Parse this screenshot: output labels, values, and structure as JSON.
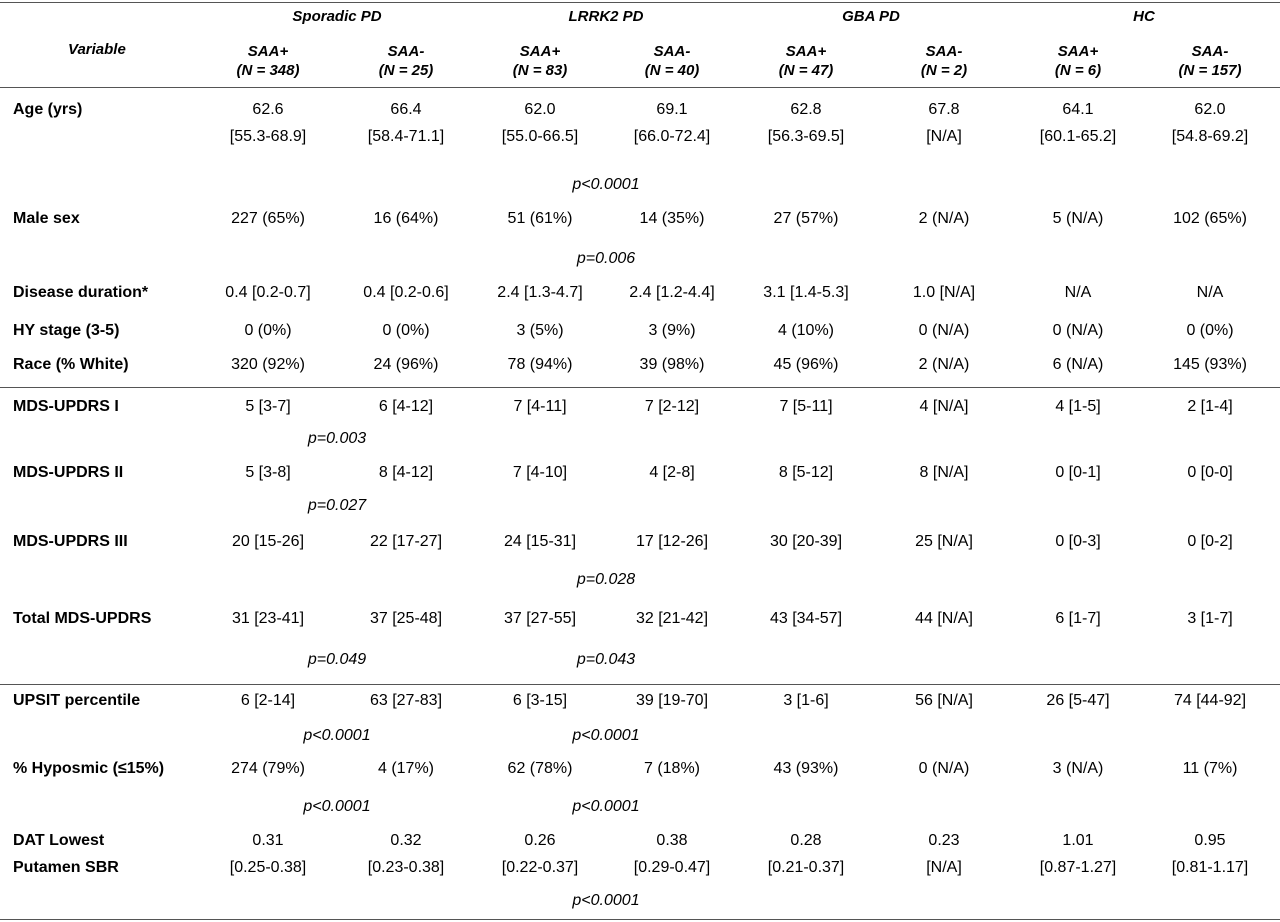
{
  "table": {
    "variable_header": "Variable",
    "groups": [
      "Sporadic PD",
      "LRRK2 PD",
      "GBA PD",
      "HC"
    ],
    "subheaders": [
      {
        "name": "SAA+",
        "n": "(N = 348)"
      },
      {
        "name": "SAA-",
        "n": "(N = 25)"
      },
      {
        "name": "SAA+",
        "n": "(N = 83)"
      },
      {
        "name": "SAA-",
        "n": "(N = 40)"
      },
      {
        "name": "SAA+",
        "n": "(N = 47)"
      },
      {
        "name": "SAA-",
        "n": "(N = 2)"
      },
      {
        "name": "SAA+",
        "n": "(N = 6)"
      },
      {
        "name": "SAA-",
        "n": "(N = 157)"
      }
    ],
    "rows": [
      {
        "label": "Age (yrs)",
        "values": [
          "62.6",
          "66.4",
          "62.0",
          "69.1",
          "62.8",
          "67.8",
          "64.1",
          "62.0"
        ],
        "ranges": [
          "[55.3-68.9]",
          "[58.4-71.1]",
          "[55.0-66.5]",
          "[66.0-72.4]",
          "[56.3-69.5]",
          "[N/A]",
          "[60.1-65.2]",
          "[54.8-69.2]"
        ],
        "pvalues": [
          "",
          "p<0.0001"
        ]
      },
      {
        "label": "Male sex",
        "values": [
          "227 (65%)",
          "16 (64%)",
          "51 (61%)",
          "14 (35%)",
          "27 (57%)",
          "2 (N/A)",
          "5 (N/A)",
          "102 (65%)"
        ],
        "pvalues": [
          "",
          "p=0.006"
        ]
      },
      {
        "label": "Disease duration*",
        "values": [
          "0.4 [0.2-0.7]",
          "0.4 [0.2-0.6]",
          "2.4 [1.3-4.7]",
          "2.4 [1.2-4.4]",
          "3.1 [1.4-5.3]",
          "1.0 [N/A]",
          "N/A",
          "N/A"
        ]
      },
      {
        "label": "HY stage (3-5)",
        "values": [
          "0 (0%)",
          "0 (0%)",
          "3 (5%)",
          "3 (9%)",
          "4 (10%)",
          "0 (N/A)",
          "0 (N/A)",
          "0 (0%)"
        ]
      },
      {
        "label": "Race (% White)",
        "values": [
          "320 (92%)",
          "24 (96%)",
          "78 (94%)",
          "39 (98%)",
          "45 (96%)",
          "2 (N/A)",
          "6 (N/A)",
          "145 (93%)"
        ]
      },
      {
        "label": "MDS-UPDRS I",
        "values": [
          "5 [3-7]",
          "6 [4-12]",
          "7 [4-11]",
          "7 [2-12]",
          "7 [5-11]",
          "4 [N/A]",
          "4 [1-5]",
          "2 [1-4]"
        ],
        "pvalues": [
          "p=0.003",
          ""
        ]
      },
      {
        "label": "MDS-UPDRS II",
        "values": [
          "5 [3-8]",
          "8 [4-12]",
          "7 [4-10]",
          "4 [2-8]",
          "8 [5-12]",
          "8 [N/A]",
          "0 [0-1]",
          "0 [0-0]"
        ],
        "pvalues": [
          "p=0.027",
          ""
        ]
      },
      {
        "label": "MDS-UPDRS III",
        "values": [
          "20 [15-26]",
          "22 [17-27]",
          "24 [15-31]",
          "17 [12-26]",
          "30 [20-39]",
          "25 [N/A]",
          "0 [0-3]",
          "0 [0-2]"
        ],
        "pvalues": [
          "",
          "p=0.028"
        ]
      },
      {
        "label": "Total MDS-UPDRS",
        "values": [
          "31 [23-41]",
          "37 [25-48]",
          "37 [27-55]",
          "32 [21-42]",
          "43 [34-57]",
          "44 [N/A]",
          "6 [1-7]",
          "3 [1-7]"
        ],
        "pvalues": [
          "p=0.049",
          "p=0.043"
        ]
      },
      {
        "label": "UPSIT percentile",
        "values": [
          "6 [2-14]",
          "63 [27-83]",
          "6 [3-15]",
          "39 [19-70]",
          "3 [1-6]",
          "56 [N/A]",
          "26 [5-47]",
          "74 [44-92]"
        ],
        "pvalues": [
          "p<0.0001",
          "p<0.0001"
        ]
      },
      {
        "label": "% Hyposmic (≤15%)",
        "values": [
          "274 (79%)",
          "4 (17%)",
          "62 (78%)",
          "7 (18%)",
          "43 (93%)",
          "0 (N/A)",
          "3 (N/A)",
          "11 (7%)"
        ],
        "pvalues": [
          "p<0.0001",
          "p<0.0001"
        ]
      },
      {
        "label": "DAT Lowest",
        "label2": "Putamen  SBR",
        "values": [
          "0.31",
          "0.32",
          "0.26",
          "0.38",
          "0.28",
          "0.23",
          "1.01",
          "0.95"
        ],
        "ranges": [
          "[0.25-0.38]",
          "[0.23-0.38]",
          "[0.22-0.37]",
          "[0.29-0.47]",
          "[0.21-0.37]",
          "[N/A]",
          "[0.87-1.27]",
          "[0.81-1.17]"
        ],
        "pvalues": [
          "",
          "p<0.0001"
        ]
      }
    ]
  }
}
